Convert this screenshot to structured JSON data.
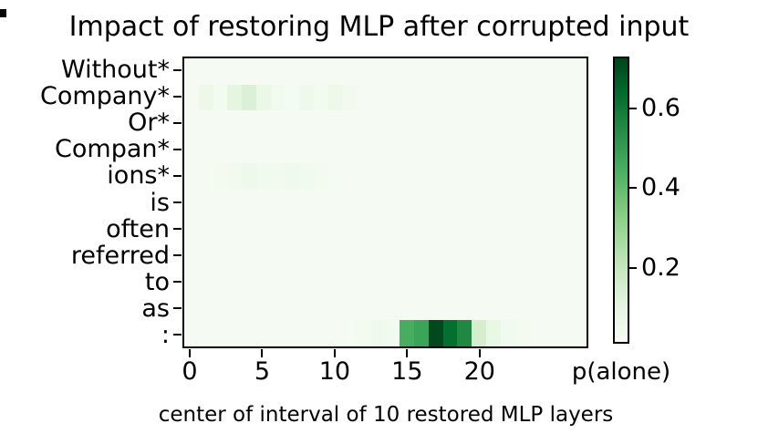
{
  "chart_data": {
    "type": "heatmap",
    "title": "Impact of restoring MLP after corrupted input",
    "xlabel": "center of interval of 10 restored MLP layers",
    "colorbar_label": "p(alone)",
    "rows": [
      "Without*",
      "Company*",
      "Or*",
      "Compan*",
      "ions*",
      "is",
      "often",
      "referred",
      "to",
      "as",
      ":"
    ],
    "n_cols": 28,
    "x_ticks": [
      {
        "v": 0,
        "label": "0"
      },
      {
        "v": 5,
        "label": "5"
      },
      {
        "v": 10,
        "label": "10"
      },
      {
        "v": 15,
        "label": "15"
      },
      {
        "v": 20,
        "label": "20"
      }
    ],
    "colorbar_ticks": [
      {
        "v": 0.2,
        "label": "0.2"
      },
      {
        "v": 0.4,
        "label": "0.4"
      },
      {
        "v": 0.6,
        "label": "0.6"
      }
    ],
    "scale": {
      "vmin": 0.01,
      "vmax": 0.73,
      "colormap": "Greens"
    },
    "colormap_stops": [
      [
        0.0,
        "#f7fcf5"
      ],
      [
        0.125,
        "#e5f5e0"
      ],
      [
        0.25,
        "#c7e9c0"
      ],
      [
        0.375,
        "#a1d99b"
      ],
      [
        0.5,
        "#74c476"
      ],
      [
        0.625,
        "#41ab5d"
      ],
      [
        0.75,
        "#238b45"
      ],
      [
        0.875,
        "#006d2c"
      ],
      [
        1.0,
        "#00441b"
      ]
    ],
    "legend_position": "right",
    "grid": false,
    "values": [
      [
        0.02,
        0.02,
        0.02,
        0.02,
        0.02,
        0.02,
        0.02,
        0.02,
        0.02,
        0.02,
        0.02,
        0.02,
        0.02,
        0.02,
        0.02,
        0.02,
        0.02,
        0.02,
        0.02,
        0.02,
        0.02,
        0.02,
        0.02,
        0.02,
        0.02,
        0.02,
        0.02,
        0.02
      ],
      [
        0.02,
        0.06,
        0.03,
        0.1,
        0.13,
        0.07,
        0.04,
        0.025,
        0.055,
        0.03,
        0.06,
        0.035,
        0.02,
        0.02,
        0.02,
        0.02,
        0.02,
        0.02,
        0.02,
        0.02,
        0.02,
        0.02,
        0.02,
        0.02,
        0.02,
        0.02,
        0.02,
        0.02
      ],
      [
        0.02,
        0.02,
        0.02,
        0.02,
        0.02,
        0.02,
        0.02,
        0.02,
        0.02,
        0.02,
        0.02,
        0.02,
        0.02,
        0.02,
        0.02,
        0.02,
        0.02,
        0.02,
        0.02,
        0.02,
        0.02,
        0.02,
        0.02,
        0.02,
        0.02,
        0.02,
        0.02,
        0.02
      ],
      [
        0.02,
        0.02,
        0.02,
        0.02,
        0.02,
        0.02,
        0.02,
        0.02,
        0.02,
        0.02,
        0.02,
        0.02,
        0.02,
        0.02,
        0.02,
        0.02,
        0.02,
        0.02,
        0.02,
        0.02,
        0.02,
        0.02,
        0.02,
        0.02,
        0.02,
        0.02,
        0.02,
        0.02
      ],
      [
        0.02,
        0.02,
        0.03,
        0.035,
        0.055,
        0.04,
        0.035,
        0.045,
        0.04,
        0.03,
        0.025,
        0.02,
        0.02,
        0.02,
        0.02,
        0.02,
        0.02,
        0.02,
        0.02,
        0.02,
        0.02,
        0.02,
        0.02,
        0.02,
        0.02,
        0.02,
        0.02,
        0.02
      ],
      [
        0.02,
        0.02,
        0.02,
        0.02,
        0.02,
        0.02,
        0.02,
        0.02,
        0.02,
        0.02,
        0.02,
        0.02,
        0.02,
        0.02,
        0.02,
        0.02,
        0.02,
        0.02,
        0.02,
        0.02,
        0.02,
        0.02,
        0.02,
        0.02,
        0.02,
        0.02,
        0.02,
        0.02
      ],
      [
        0.02,
        0.02,
        0.02,
        0.02,
        0.02,
        0.02,
        0.02,
        0.02,
        0.02,
        0.02,
        0.02,
        0.02,
        0.02,
        0.02,
        0.02,
        0.02,
        0.02,
        0.02,
        0.02,
        0.02,
        0.02,
        0.02,
        0.02,
        0.02,
        0.02,
        0.02,
        0.02,
        0.02
      ],
      [
        0.02,
        0.02,
        0.02,
        0.02,
        0.02,
        0.02,
        0.02,
        0.02,
        0.02,
        0.02,
        0.02,
        0.02,
        0.02,
        0.02,
        0.02,
        0.02,
        0.02,
        0.02,
        0.02,
        0.02,
        0.02,
        0.02,
        0.02,
        0.02,
        0.02,
        0.02,
        0.02,
        0.02
      ],
      [
        0.02,
        0.02,
        0.02,
        0.02,
        0.02,
        0.02,
        0.02,
        0.02,
        0.02,
        0.02,
        0.02,
        0.02,
        0.02,
        0.02,
        0.02,
        0.02,
        0.02,
        0.02,
        0.02,
        0.02,
        0.02,
        0.02,
        0.02,
        0.02,
        0.02,
        0.02,
        0.02,
        0.02
      ],
      [
        0.02,
        0.02,
        0.02,
        0.02,
        0.02,
        0.02,
        0.02,
        0.02,
        0.02,
        0.02,
        0.02,
        0.02,
        0.02,
        0.02,
        0.02,
        0.02,
        0.02,
        0.02,
        0.02,
        0.02,
        0.02,
        0.02,
        0.02,
        0.02,
        0.02,
        0.02,
        0.02,
        0.02
      ],
      [
        0.02,
        0.02,
        0.02,
        0.02,
        0.02,
        0.02,
        0.02,
        0.02,
        0.02,
        0.02,
        0.02,
        0.025,
        0.03,
        0.05,
        0.04,
        0.45,
        0.48,
        0.72,
        0.63,
        0.56,
        0.15,
        0.08,
        0.04,
        0.03,
        0.02,
        0.02,
        0.02,
        0.02
      ]
    ]
  }
}
